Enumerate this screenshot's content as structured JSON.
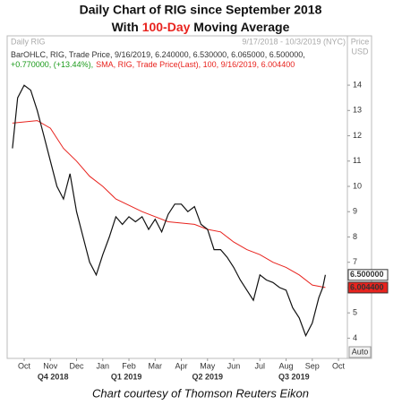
{
  "chart_data": {
    "type": "line",
    "title": "Daily Chart of RIG since September 2018",
    "subtitle_parts": [
      "With ",
      "100-Day",
      " Moving Average"
    ],
    "subtitle_colors": [
      "#111111",
      "#e8231e",
      "#111111"
    ],
    "header_left": "Daily RIG",
    "header_right": "9/17/2018 - 10/3/2019 (NYC)",
    "y_axis_label": [
      "Price",
      "USD"
    ],
    "auto_label": "Auto",
    "footer": "Chart courtesy of Thomson Reuters Eikon",
    "xlim": [
      0.35,
      13.34
    ],
    "ylim": [
      3.2,
      15.95
    ],
    "xticks": [
      {
        "value": 1,
        "label": "Oct"
      },
      {
        "value": 2,
        "label": "Nov"
      },
      {
        "value": 3,
        "label": "Dec"
      },
      {
        "value": 4,
        "label": "Jan"
      },
      {
        "value": 5,
        "label": "Feb"
      },
      {
        "value": 6,
        "label": "Mar"
      },
      {
        "value": 7,
        "label": "Apr"
      },
      {
        "value": 8,
        "label": "May"
      },
      {
        "value": 9,
        "label": "Jun"
      },
      {
        "value": 10,
        "label": "Jul"
      },
      {
        "value": 11,
        "label": "Aug"
      },
      {
        "value": 12,
        "label": "Sep"
      },
      {
        "value": 13,
        "label": "Oct"
      }
    ],
    "quarter_ticks": [
      {
        "value": 2.1,
        "label": "Q4 2018"
      },
      {
        "value": 4.9,
        "label": "Q1 2019"
      },
      {
        "value": 8.0,
        "label": "Q2 2019"
      },
      {
        "value": 11.3,
        "label": "Q3 2019"
      }
    ],
    "yticks": [
      4,
      5,
      6,
      7,
      8,
      9,
      10,
      11,
      12,
      13,
      14
    ],
    "series": [
      {
        "name": "BarOHLC, RIG, Trade Price, 9/16/2019, 6.240000, 6.530000, 6.065000, 6.500000,",
        "change": "+0.770000, (+13.44%),",
        "change_color": "#1a9a1a",
        "color": "#111111",
        "last_label": "6.500000",
        "last_label_bg": "#ffffff",
        "x": [
          0.55,
          0.75,
          1.0,
          1.25,
          1.5,
          1.75,
          2.0,
          2.25,
          2.5,
          2.75,
          3.0,
          3.25,
          3.5,
          3.75,
          4.0,
          4.25,
          4.5,
          4.75,
          5.0,
          5.25,
          5.5,
          5.75,
          6.0,
          6.25,
          6.5,
          6.75,
          7.0,
          7.25,
          7.5,
          7.75,
          8.0,
          8.25,
          8.5,
          8.75,
          9.0,
          9.25,
          9.5,
          9.75,
          10.0,
          10.25,
          10.5,
          10.75,
          11.0,
          11.25,
          11.5,
          11.75,
          12.0,
          12.25,
          12.4,
          12.5
        ],
        "values": [
          11.5,
          13.5,
          14.0,
          13.8,
          13.0,
          12.0,
          11.0,
          10.0,
          9.5,
          10.5,
          9.0,
          8.0,
          7.0,
          6.5,
          7.3,
          8.0,
          8.8,
          8.5,
          8.8,
          8.6,
          8.8,
          8.3,
          8.7,
          8.2,
          8.9,
          9.3,
          9.3,
          9.0,
          9.2,
          8.5,
          8.3,
          7.5,
          7.5,
          7.2,
          6.8,
          6.3,
          5.9,
          5.5,
          6.5,
          6.3,
          6.2,
          6.0,
          5.9,
          5.2,
          4.8,
          4.1,
          4.6,
          5.6,
          6.0,
          6.5
        ]
      },
      {
        "name": "SMA, RIG, Trade Price(Last), 100, 9/16/2019, 6.004400",
        "color": "#e8231e",
        "last_label": "6.004400",
        "last_label_bg": "#e8231e",
        "x": [
          0.55,
          1.5,
          2.0,
          2.5,
          3.0,
          3.5,
          4.0,
          4.5,
          5.5,
          6.5,
          7.5,
          8.0,
          8.5,
          9.0,
          9.5,
          10.0,
          10.5,
          11.0,
          11.5,
          12.0,
          12.5
        ],
        "values": [
          12.5,
          12.6,
          12.3,
          11.5,
          11.0,
          10.4,
          10.0,
          9.5,
          9.0,
          8.6,
          8.5,
          8.3,
          8.2,
          7.8,
          7.5,
          7.3,
          7.0,
          6.8,
          6.5,
          6.1,
          6.0
        ]
      }
    ]
  }
}
